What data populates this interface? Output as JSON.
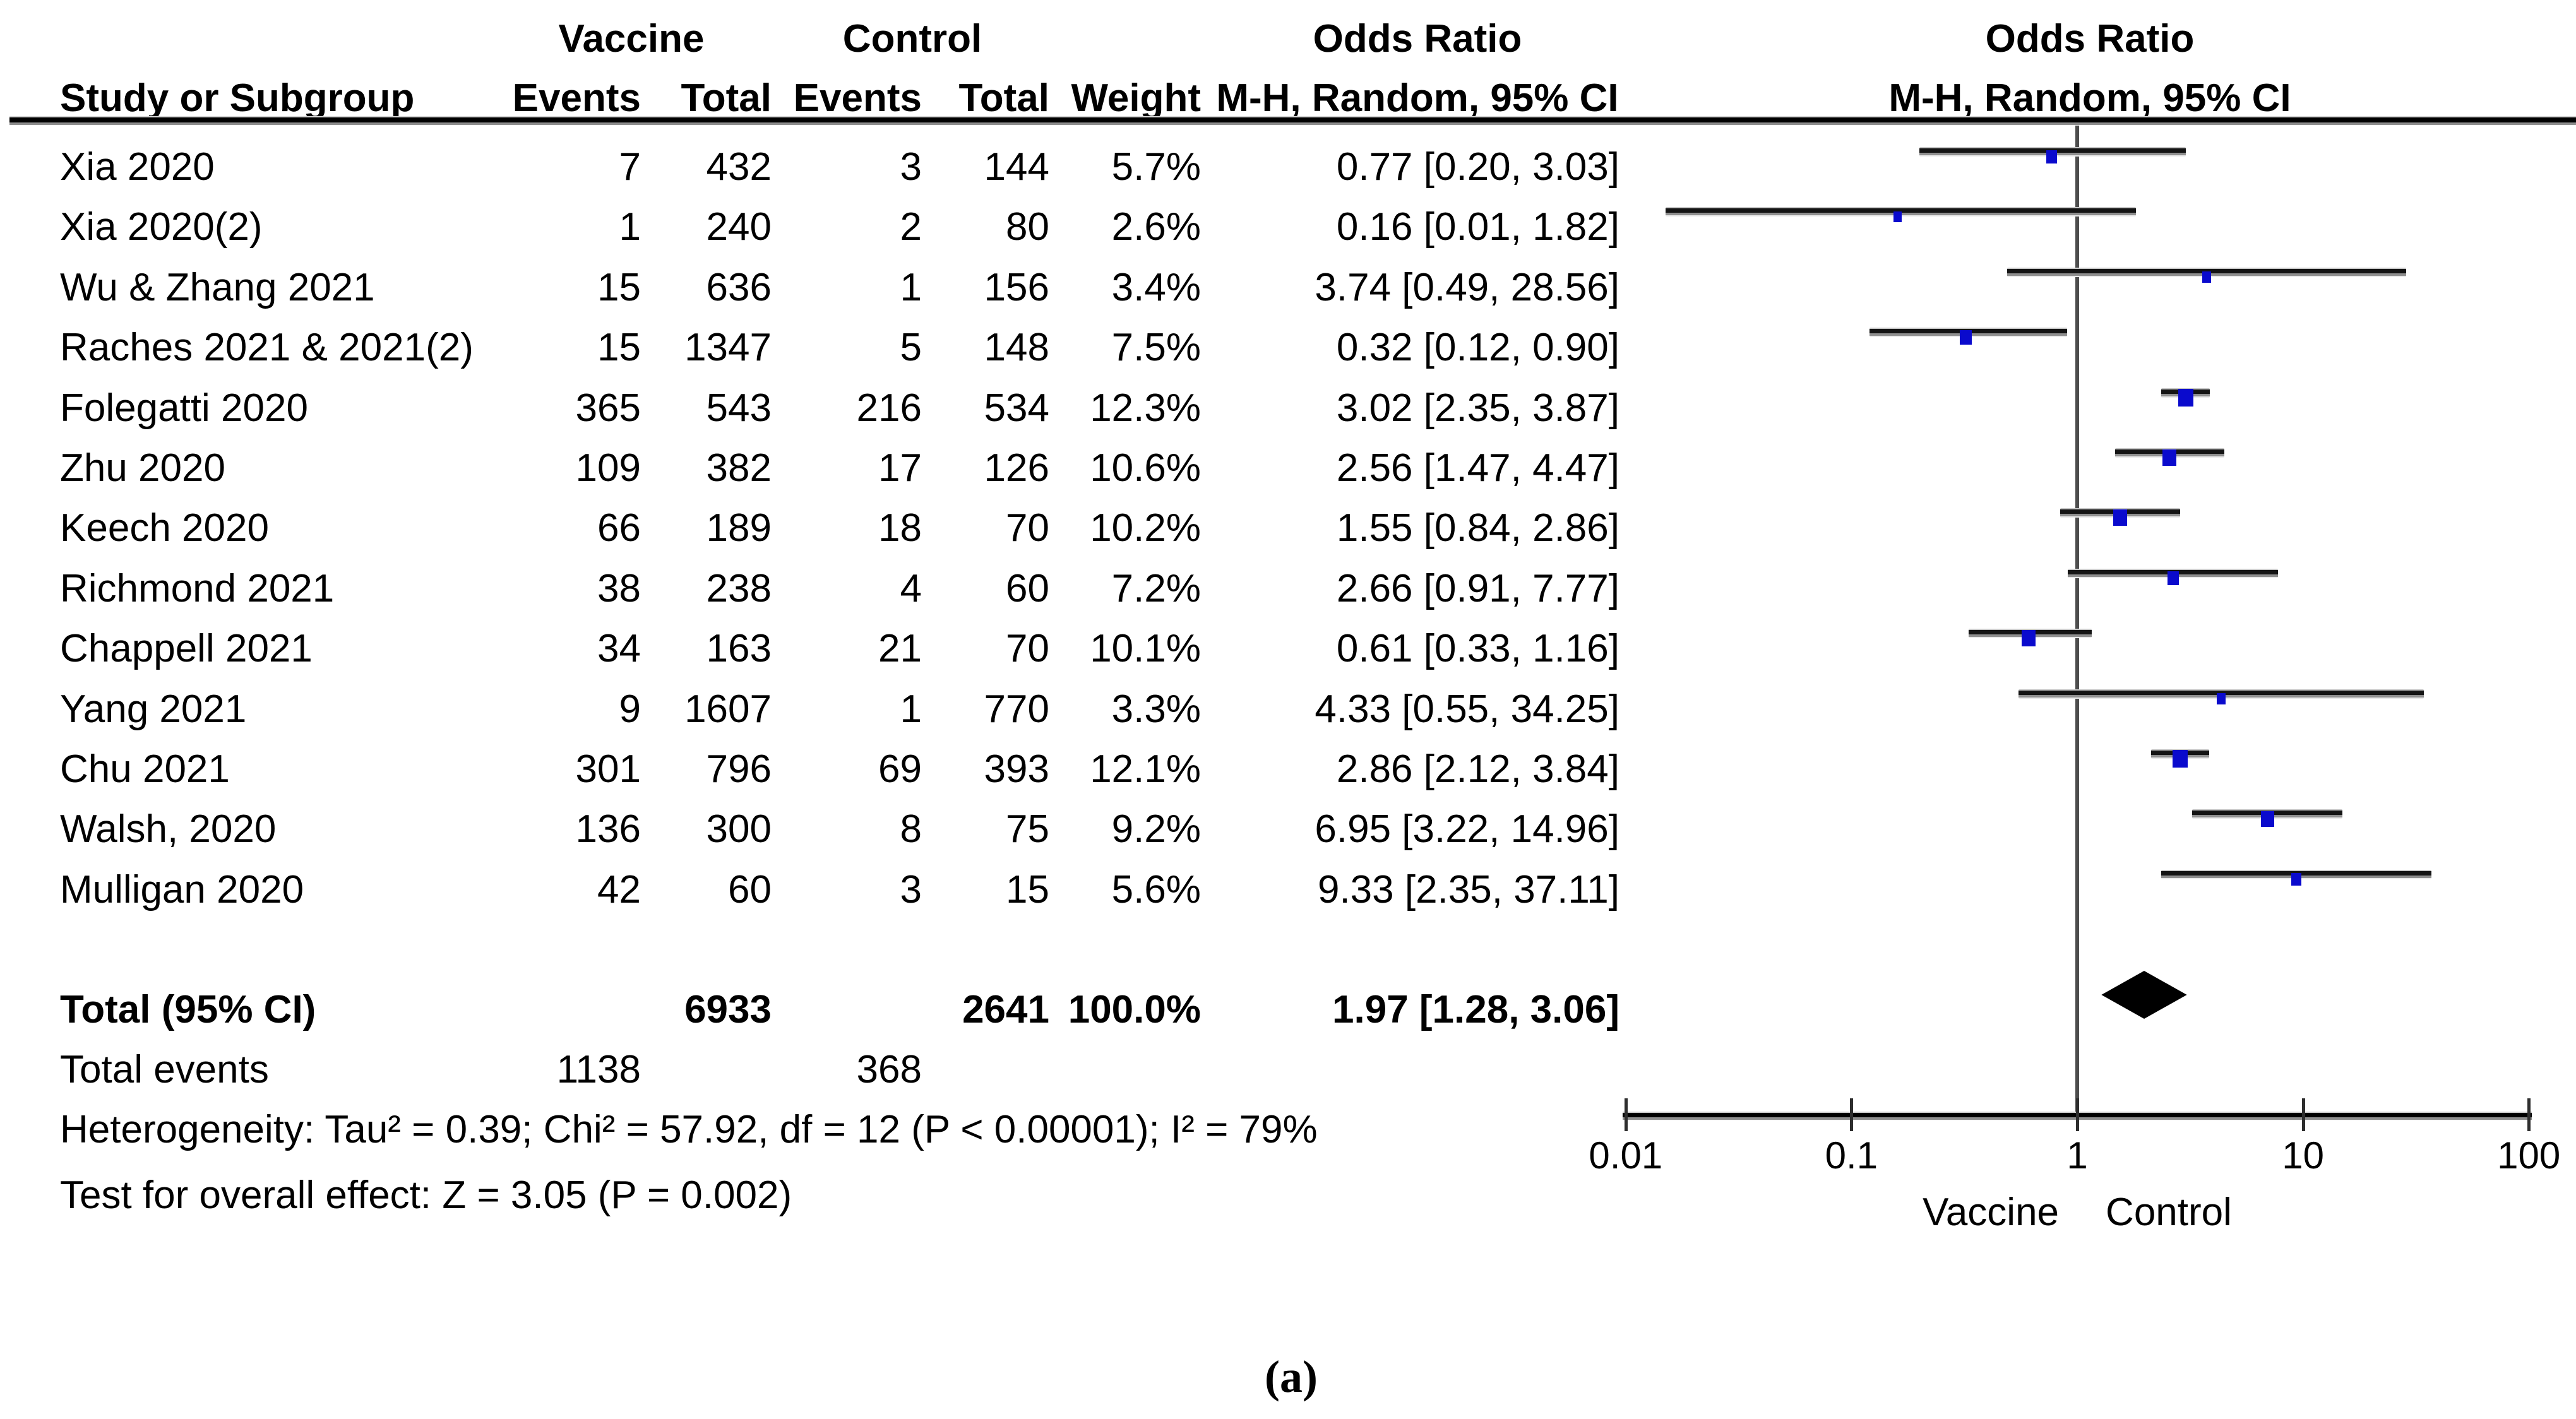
{
  "chart_data": {
    "type": "forest",
    "effect_measure": "Odds Ratio",
    "method": "M-H, Random, 95% CI",
    "group_headers": {
      "vaccine": "Vaccine",
      "control": "Control",
      "odds_ratio_text_col": "Odds Ratio",
      "odds_ratio_plot_col": "Odds Ratio"
    },
    "column_headers": {
      "study": "Study or Subgroup",
      "events_vaccine": "Events",
      "total_vaccine": "Total",
      "events_control": "Events",
      "total_control": "Total",
      "weight": "Weight",
      "mh_text": "M-H, Random, 95% CI",
      "mh_plot": "M-H, Random, 95% CI"
    },
    "studies": [
      {
        "name": "Xia 2020",
        "events_vaccine": 7,
        "total_vaccine": 432,
        "events_control": 3,
        "total_control": 144,
        "weight": "5.7%",
        "or_label": "0.77 [0.20, 3.03]",
        "or": 0.77,
        "ci_low": 0.2,
        "ci_high": 3.03
      },
      {
        "name": "Xia 2020(2)",
        "events_vaccine": 1,
        "total_vaccine": 240,
        "events_control": 2,
        "total_control": 80,
        "weight": "2.6%",
        "or_label": "0.16 [0.01, 1.82]",
        "or": 0.16,
        "ci_low": 0.01,
        "ci_high": 1.82
      },
      {
        "name": "Wu & Zhang 2021",
        "events_vaccine": 15,
        "total_vaccine": 636,
        "events_control": 1,
        "total_control": 156,
        "weight": "3.4%",
        "or_label": "3.74 [0.49, 28.56]",
        "or": 3.74,
        "ci_low": 0.49,
        "ci_high": 28.56
      },
      {
        "name": "Raches 2021 & 2021(2)",
        "events_vaccine": 15,
        "total_vaccine": 1347,
        "events_control": 5,
        "total_control": 148,
        "weight": "7.5%",
        "or_label": "0.32 [0.12, 0.90]",
        "or": 0.32,
        "ci_low": 0.12,
        "ci_high": 0.9
      },
      {
        "name": "Folegatti 2020",
        "events_vaccine": 365,
        "total_vaccine": 543,
        "events_control": 216,
        "total_control": 534,
        "weight": "12.3%",
        "or_label": "3.02 [2.35, 3.87]",
        "or": 3.02,
        "ci_low": 2.35,
        "ci_high": 3.87
      },
      {
        "name": "Zhu 2020",
        "events_vaccine": 109,
        "total_vaccine": 382,
        "events_control": 17,
        "total_control": 126,
        "weight": "10.6%",
        "or_label": "2.56 [1.47, 4.47]",
        "or": 2.56,
        "ci_low": 1.47,
        "ci_high": 4.47
      },
      {
        "name": "Keech 2020",
        "events_vaccine": 66,
        "total_vaccine": 189,
        "events_control": 18,
        "total_control": 70,
        "weight": "10.2%",
        "or_label": "1.55 [0.84, 2.86]",
        "or": 1.55,
        "ci_low": 0.84,
        "ci_high": 2.86
      },
      {
        "name": "Richmond 2021",
        "events_vaccine": 38,
        "total_vaccine": 238,
        "events_control": 4,
        "total_control": 60,
        "weight": "7.2%",
        "or_label": "2.66 [0.91, 7.77]",
        "or": 2.66,
        "ci_low": 0.91,
        "ci_high": 7.77
      },
      {
        "name": "Chappell 2021",
        "events_vaccine": 34,
        "total_vaccine": 163,
        "events_control": 21,
        "total_control": 70,
        "weight": "10.1%",
        "or_label": "0.61 [0.33, 1.16]",
        "or": 0.61,
        "ci_low": 0.33,
        "ci_high": 1.16
      },
      {
        "name": "Yang 2021",
        "events_vaccine": 9,
        "total_vaccine": 1607,
        "events_control": 1,
        "total_control": 770,
        "weight": "3.3%",
        "or_label": "4.33 [0.55, 34.25]",
        "or": 4.33,
        "ci_low": 0.55,
        "ci_high": 34.25
      },
      {
        "name": "Chu 2021",
        "events_vaccine": 301,
        "total_vaccine": 796,
        "events_control": 69,
        "total_control": 393,
        "weight": "12.1%",
        "or_label": "2.86 [2.12, 3.84]",
        "or": 2.86,
        "ci_low": 2.12,
        "ci_high": 3.84
      },
      {
        "name": "Walsh, 2020",
        "events_vaccine": 136,
        "total_vaccine": 300,
        "events_control": 8,
        "total_control": 75,
        "weight": "9.2%",
        "or_label": "6.95 [3.22, 14.96]",
        "or": 6.95,
        "ci_low": 3.22,
        "ci_high": 14.96
      },
      {
        "name": "Mulligan 2020",
        "events_vaccine": 42,
        "total_vaccine": 60,
        "events_control": 3,
        "total_control": 15,
        "weight": "5.6%",
        "or_label": "9.33 [2.35, 37.11]",
        "or": 9.33,
        "ci_low": 2.35,
        "ci_high": 37.11
      }
    ],
    "total": {
      "label": "Total (95% CI)",
      "total_vaccine": "6933",
      "total_control": "2641",
      "weight": "100.0%",
      "or_label": "1.97 [1.28, 3.06]",
      "or": 1.97,
      "ci_low": 1.28,
      "ci_high": 3.06
    },
    "total_events": {
      "label": "Total events",
      "vaccine": "1138",
      "control": "368"
    },
    "heterogeneity": "Heterogeneity: Tau² = 0.39; Chi² = 57.92, df = 12 (P < 0.00001); I² = 79%",
    "overall_effect": "Test for overall effect: Z = 3.05 (P = 0.002)",
    "axis": {
      "scale": "log10",
      "range": [
        0.01,
        100
      ],
      "tick_labels": [
        "0.01",
        "0.1",
        "1",
        "10",
        "100"
      ],
      "xlabel_left": "Vaccine",
      "xlabel_right": "Control"
    },
    "colors": {
      "marker_blue": "#0A0ACD",
      "diamond_black": "#000000",
      "centerline_gray": "#4D4D4D"
    },
    "caption": "(a)"
  }
}
